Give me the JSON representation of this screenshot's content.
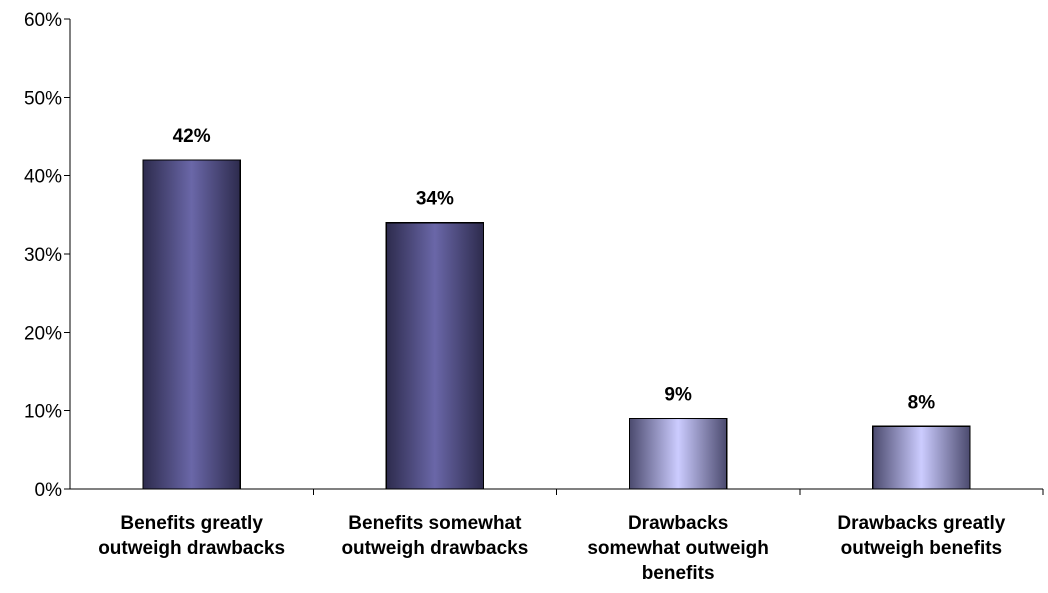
{
  "chart_data": {
    "type": "bar",
    "title": "",
    "xlabel": "",
    "ylabel": "",
    "ylim": [
      0,
      60
    ],
    "yticks": [
      0,
      10,
      20,
      30,
      40,
      50,
      60
    ],
    "ytick_labels": [
      "0%",
      "10%",
      "20%",
      "30%",
      "40%",
      "50%",
      "60%"
    ],
    "grid": false,
    "legend": "none",
    "categories": [
      "Benefits greatly outweigh drawbacks",
      "Benefits somewhat outweigh drawbacks",
      "Drawbacks somewhat outweigh benefits",
      "Drawbacks greatly outweigh benefits"
    ],
    "category_label_lines": [
      [
        "Benefits greatly",
        "outweigh drawbacks"
      ],
      [
        "Benefits somewhat",
        "outweigh drawbacks"
      ],
      [
        "Drawbacks",
        "somewhat outweigh",
        "benefits"
      ],
      [
        "Drawbacks greatly",
        "outweigh benefits"
      ]
    ],
    "values": [
      42,
      34,
      9,
      8
    ],
    "value_labels": [
      "42%",
      "34%",
      "9%",
      "8%"
    ],
    "colors": {
      "dark_bar_edge": "#2d2b4d",
      "dark_bar_center": "#6a67a8",
      "light_bar_edge": "#4b4a6e",
      "light_bar_center": "#ccccff",
      "axis": "#000000"
    },
    "bar_styles": [
      "dark",
      "dark",
      "light",
      "light"
    ]
  }
}
